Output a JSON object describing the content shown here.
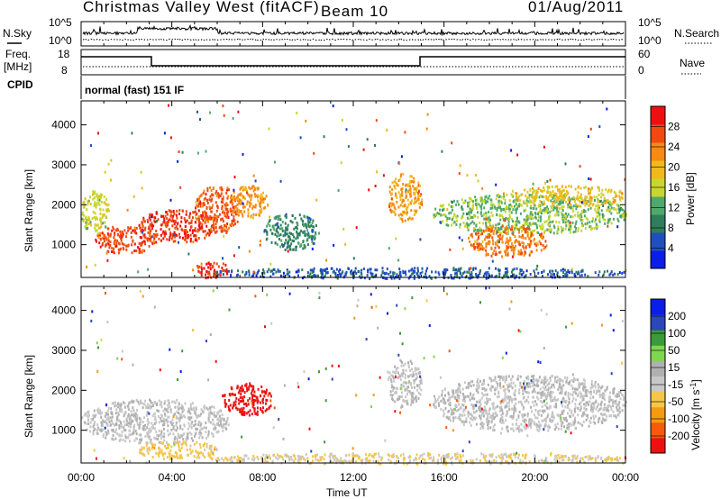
{
  "header": {
    "station": "Christmas Valley West (fitACF)",
    "beam": "Beam 10",
    "date": "01/Aug/2011"
  },
  "noise_panel": {
    "left_label": "N.Sky",
    "right_label": "N.Search",
    "left_ticks": [
      "10^5",
      "10^0"
    ],
    "right_ticks": [
      "10^5",
      "10^0"
    ]
  },
  "freq_panel": {
    "left_label_1": "Freq.",
    "left_label_2": "[MHz]",
    "right_label": "Nave",
    "left_ticks": [
      "18",
      "8"
    ],
    "right_ticks": [
      "60",
      "0"
    ]
  },
  "cpid": {
    "label": "CPID",
    "text": "normal (fast) 151 IF"
  },
  "colors": {
    "power": [
      "#0a1ee6",
      "#1f4fbf",
      "#2e7d5c",
      "#4fa96b",
      "#c8d62e",
      "#f0b91c",
      "#f58a14",
      "#f04a10",
      "#ee1010"
    ],
    "velocity": [
      "#ee1010",
      "#f55a0e",
      "#f59a12",
      "#f6c64a",
      "#c8c8c8",
      "#b0b0b0",
      "#7fd64f",
      "#3b9a3b",
      "#2b48b8",
      "#0a1ee6"
    ]
  },
  "chart_data": [
    {
      "type": "heatmap",
      "title": "Power",
      "ylabel": "Slant Range [km]",
      "xlabel": "",
      "yticks": [
        1000,
        2000,
        3000,
        4000
      ],
      "ylim": [
        180,
        4600
      ],
      "colorbar_label": "Power [dB]",
      "colorbar_ticks": [
        "28",
        "24",
        "20",
        "16",
        "12",
        "8",
        "4"
      ],
      "colorbar_range": [
        0,
        32
      ],
      "blobs": [
        {
          "t0": 0.6,
          "t1": 3.3,
          "r0": 800,
          "r1": 1500,
          "v": 27
        },
        {
          "t0": 2.5,
          "t1": 6.0,
          "r0": 1100,
          "r1": 1900,
          "v": 28
        },
        {
          "t0": 5.0,
          "t1": 7.0,
          "r0": 1300,
          "r1": 2500,
          "v": 26
        },
        {
          "t0": 6.5,
          "t1": 8.2,
          "r0": 1700,
          "r1": 2500,
          "v": 22
        },
        {
          "t0": 0.0,
          "t1": 1.2,
          "r0": 1300,
          "r1": 2400,
          "v": 16
        },
        {
          "t0": 8.0,
          "t1": 10.5,
          "r0": 900,
          "r1": 1800,
          "v": 9
        },
        {
          "t0": 13.5,
          "t1": 15.0,
          "r0": 1600,
          "r1": 2800,
          "v": 22
        },
        {
          "t0": 15.5,
          "t1": 24.0,
          "r0": 1300,
          "r1": 2300,
          "v": 14
        },
        {
          "t0": 17.0,
          "t1": 20.5,
          "r0": 700,
          "r1": 1500,
          "v": 24
        },
        {
          "t0": 19.0,
          "t1": 24.0,
          "r0": 2000,
          "r1": 2500,
          "v": 19
        },
        {
          "t0": 5.5,
          "t1": 24.0,
          "r0": 180,
          "r1": 450,
          "v": 6
        },
        {
          "t0": 5.0,
          "t1": 6.5,
          "r0": 180,
          "r1": 600,
          "v": 28
        }
      ]
    },
    {
      "type": "heatmap",
      "title": "Velocity",
      "ylabel": "Slant Range [km]",
      "xlabel": "Time UT",
      "xticks": [
        "00:00",
        "04:00",
        "08:00",
        "12:00",
        "16:00",
        "20:00",
        "00:00"
      ],
      "xlim": [
        0,
        24
      ],
      "yticks": [
        1000,
        2000,
        3000,
        4000
      ],
      "ylim": [
        180,
        4600
      ],
      "colorbar_label": "Velocity [m s^-1]",
      "colorbar_ticks": [
        "200",
        "100",
        "50",
        "15",
        "-15",
        "-50",
        "-100",
        "-200"
      ],
      "colorbar_range": [
        -250,
        250
      ],
      "blobs": [
        {
          "t0": 0.0,
          "t1": 6.5,
          "r0": 700,
          "r1": 1800,
          "v": -5
        },
        {
          "t0": 6.2,
          "t1": 8.4,
          "r0": 1400,
          "r1": 2200,
          "v": -230
        },
        {
          "t0": 2.5,
          "t1": 6.0,
          "r0": 300,
          "r1": 750,
          "v": -70
        },
        {
          "t0": 13.5,
          "t1": 15.0,
          "r0": 1600,
          "r1": 2800,
          "v": -5
        },
        {
          "t0": 15.5,
          "t1": 24.0,
          "r0": 1000,
          "r1": 2400,
          "v": -5
        },
        {
          "t0": 5.5,
          "t1": 24.0,
          "r0": 180,
          "r1": 450,
          "v": -50
        }
      ]
    }
  ]
}
